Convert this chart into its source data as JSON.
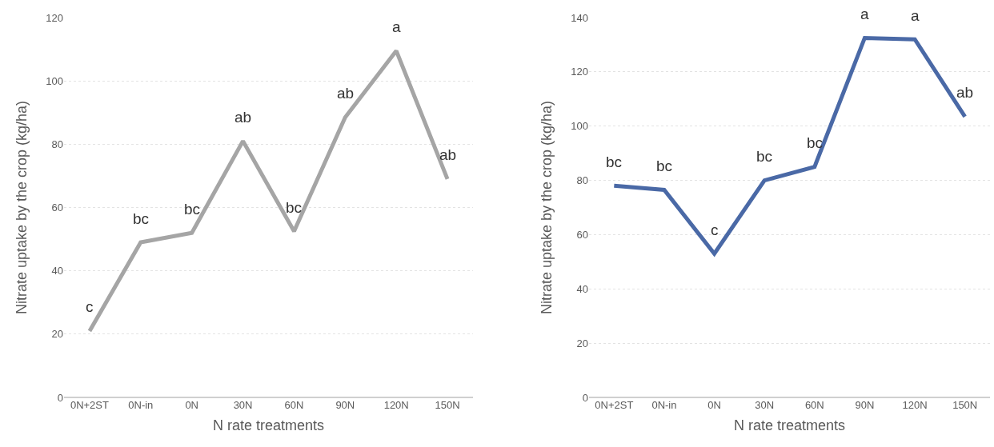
{
  "chart_data": [
    {
      "type": "line",
      "xlabel": "N rate treatments",
      "ylabel": "Nitrate uptake by the crop (kg/ha)",
      "categories": [
        "0N+2ST",
        "0N-in",
        "0N",
        "30N",
        "60N",
        "90N",
        "120N",
        "150N"
      ],
      "series": [
        {
          "color": "#a5a5a5",
          "values": [
            21,
            49,
            52,
            81,
            52.5,
            88.5,
            109.5,
            69
          ]
        }
      ],
      "ylim": [
        0,
        120
      ],
      "yticks": [
        0,
        20,
        40,
        60,
        80,
        100,
        120
      ],
      "grid": "y",
      "marker": "none",
      "line_style": "solid",
      "annotations": [
        {
          "text": "c",
          "x": "0N+2ST",
          "y": 21
        },
        {
          "text": "bc",
          "x": "0N-in",
          "y": 49
        },
        {
          "text": "bc",
          "x": "0N",
          "y": 52
        },
        {
          "text": "ab",
          "x": "30N",
          "y": 81
        },
        {
          "text": "bc",
          "x": "60N",
          "y": 52.5
        },
        {
          "text": "ab",
          "x": "90N",
          "y": 88.5
        },
        {
          "text": "a",
          "x": "120N",
          "y": 109.5
        },
        {
          "text": "ab",
          "x": "150N",
          "y": 69
        }
      ]
    },
    {
      "type": "line",
      "xlabel": "N rate treatments",
      "ylabel": "Nitrate uptake by the crop (kg/ha)",
      "categories": [
        "0N+2ST",
        "0N-in",
        "0N",
        "30N",
        "60N",
        "90N",
        "120N",
        "150N"
      ],
      "series": [
        {
          "color": "#4a69a6",
          "values": [
            78,
            76.5,
            53,
            80,
            85,
            132.5,
            132,
            103.5
          ]
        }
      ],
      "ylim": [
        0,
        140
      ],
      "yticks": [
        0,
        20,
        40,
        60,
        80,
        100,
        120,
        140
      ],
      "grid": "y",
      "marker": "none",
      "line_style": "solid",
      "annotations": [
        {
          "text": "bc",
          "x": "0N+2ST",
          "y": 78
        },
        {
          "text": "bc",
          "x": "0N-in",
          "y": 76.5
        },
        {
          "text": "c",
          "x": "0N",
          "y": 53
        },
        {
          "text": "bc",
          "x": "30N",
          "y": 80
        },
        {
          "text": "bc",
          "x": "60N",
          "y": 85
        },
        {
          "text": "a",
          "x": "90N",
          "y": 132.5
        },
        {
          "text": "a",
          "x": "120N",
          "y": 132
        },
        {
          "text": "ab",
          "x": "150N",
          "y": 103.5
        }
      ]
    }
  ]
}
